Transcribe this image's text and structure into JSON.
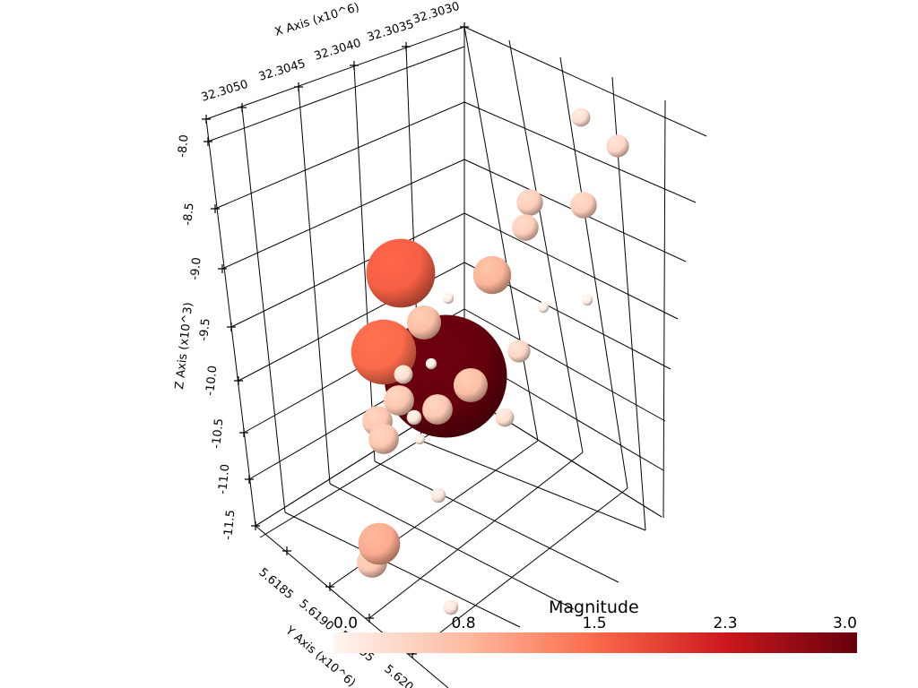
{
  "chart_data": {
    "type": "scatter",
    "projection": "3d",
    "axes": {
      "x": {
        "title": "X Axis (x10^6)",
        "ticks": [
          "32.3050",
          "32.3045",
          "32.3040",
          "32.3035",
          "32.3030"
        ]
      },
      "y": {
        "title": "Y Axis (x10^6)",
        "ticks": [
          "5.6185",
          "5.6190",
          "5.6195",
          "5.620"
        ]
      },
      "z": {
        "title": "Z Axis (x10^3)",
        "ticks": [
          "-8.0",
          "-8.5",
          "-9.0",
          "-9.5",
          "-10.0",
          "-10.5",
          "-11.0",
          "-11.5"
        ]
      }
    },
    "grid": true,
    "colorbar": {
      "title": "Magnitude",
      "ticks": [
        "0.0",
        "0.8",
        "1.5",
        "2.3",
        "3.0"
      ],
      "range": [
        0,
        3.0
      ],
      "colors": [
        "#fff5f0",
        "#fcbba1",
        "#fb6a4a",
        "#cb181d",
        "#67000d"
      ],
      "placement": "bottom-right"
    },
    "points": [
      {
        "magnitude": 3.0
      },
      {
        "magnitude": 1.6
      },
      {
        "magnitude": 1.5
      },
      {
        "magnitude": 0.8
      },
      {
        "magnitude": 0.9
      },
      {
        "magnitude": 0.7
      },
      {
        "magnitude": 0.7
      },
      {
        "magnitude": 0.6
      },
      {
        "magnitude": 0.6
      },
      {
        "magnitude": 0.6
      },
      {
        "magnitude": 0.6
      },
      {
        "magnitude": 0.5
      },
      {
        "magnitude": 0.5
      },
      {
        "magnitude": 0.5
      },
      {
        "magnitude": 0.4
      },
      {
        "magnitude": 0.4
      },
      {
        "magnitude": 0.3
      },
      {
        "magnitude": 0.3
      },
      {
        "magnitude": 0.3
      },
      {
        "magnitude": 0.2
      },
      {
        "magnitude": 0.2
      },
      {
        "magnitude": 0.1
      },
      {
        "magnitude": 0.1
      },
      {
        "magnitude": 0.1
      },
      {
        "magnitude": 0.1
      },
      {
        "magnitude": 0.1
      },
      {
        "magnitude": 0.2
      },
      {
        "magnitude": 0.6
      }
    ]
  }
}
